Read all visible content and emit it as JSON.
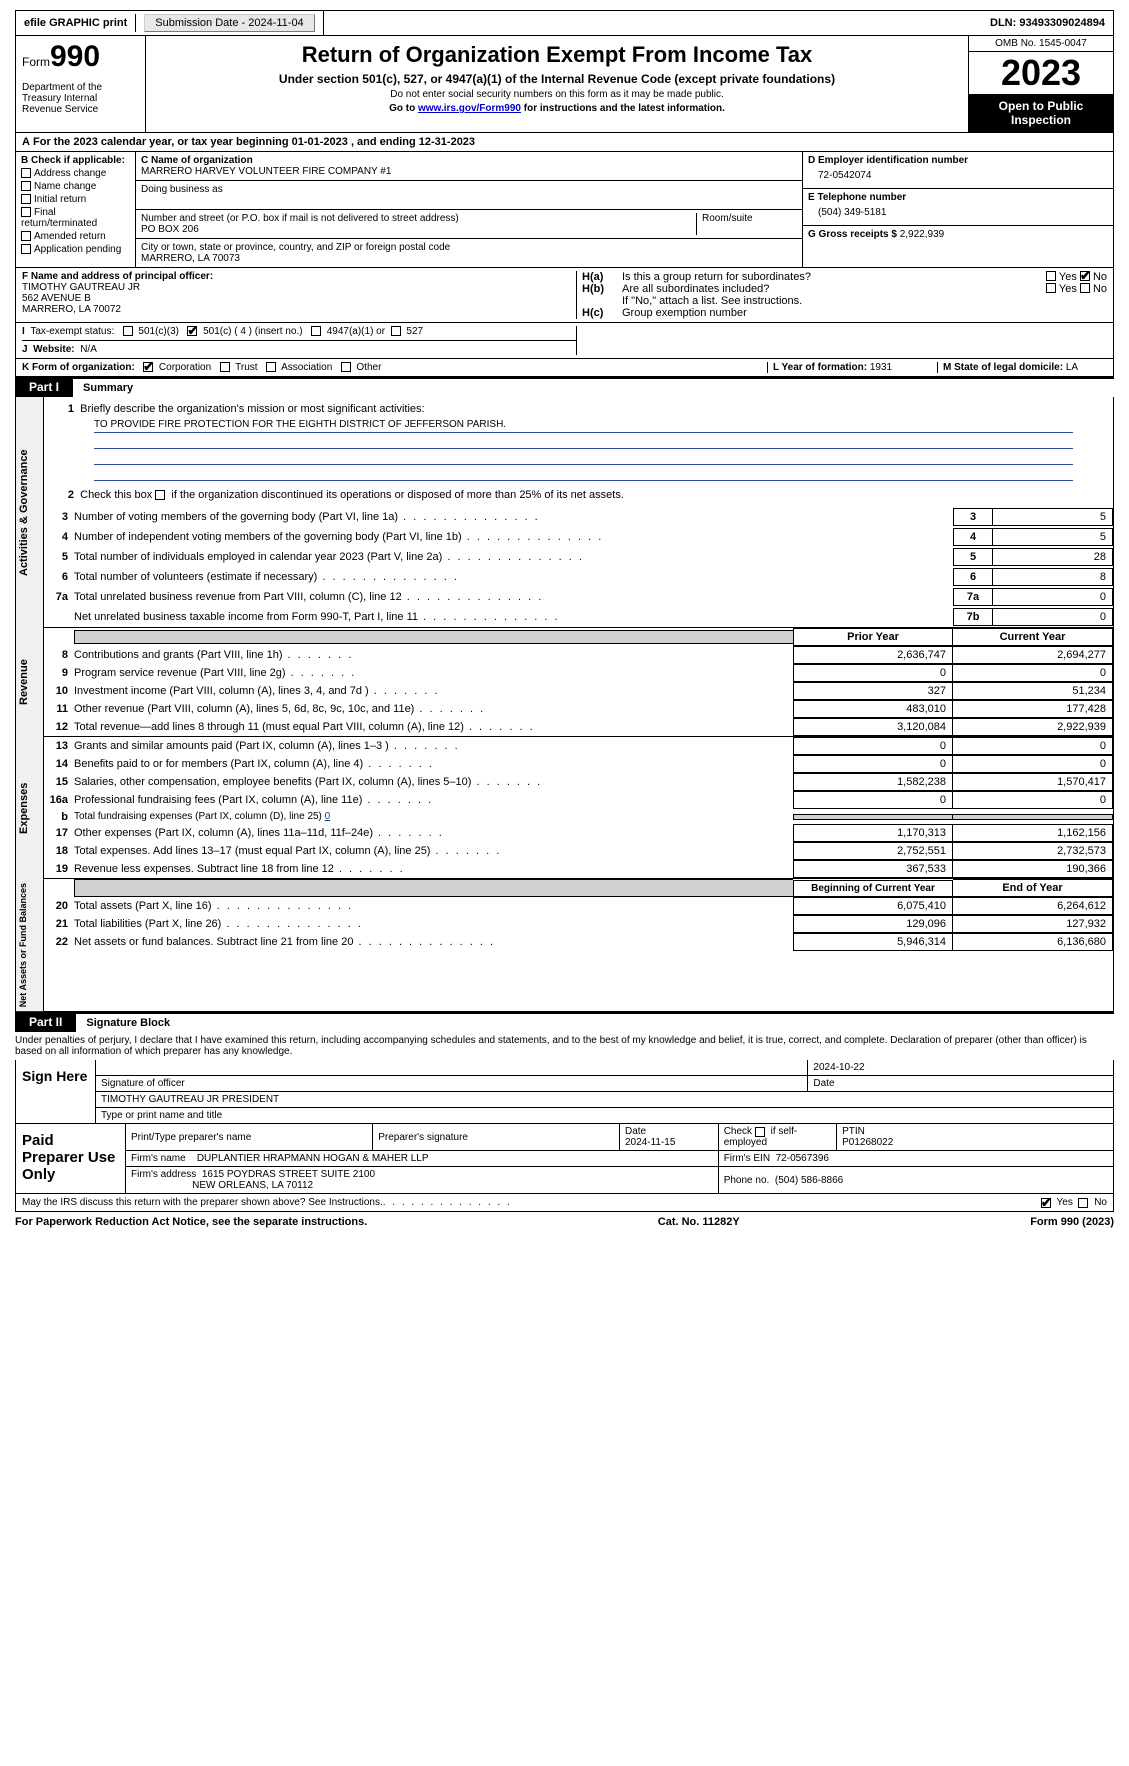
{
  "topbar": {
    "efile": "efile GRAPHIC print",
    "submission": "Submission Date - 2024-11-04",
    "dln": "DLN: 93493309024894"
  },
  "header": {
    "form_prefix": "Form",
    "form_number": "990",
    "dept": "Department of the Treasury Internal Revenue Service",
    "title": "Return of Organization Exempt From Income Tax",
    "subtitle": "Under section 501(c), 527, or 4947(a)(1) of the Internal Revenue Code (except private foundations)",
    "warn": "Do not enter social security numbers on this form as it may be made public.",
    "goto_prefix": "Go to ",
    "goto_link": "www.irs.gov/Form990",
    "goto_suffix": " for instructions and the latest information.",
    "omb": "OMB No. 1545-0047",
    "year": "2023",
    "inspection": "Open to Public Inspection"
  },
  "line_a": "For the 2023 calendar year, or tax year beginning 01-01-2023    , and ending 12-31-2023",
  "box_b": {
    "title": "B Check if applicable:",
    "opts": [
      "Address change",
      "Name change",
      "Initial return",
      "Final return/terminated",
      "Amended return",
      "Application pending"
    ]
  },
  "box_c": {
    "name_lbl": "C Name of organization",
    "name": "MARRERO HARVEY VOLUNTEER FIRE COMPANY #1",
    "dba_lbl": "Doing business as",
    "addr_lbl": "Number and street (or P.O. box if mail is not delivered to street address)",
    "addr": "PO BOX 206",
    "room_lbl": "Room/suite",
    "city_lbl": "City or town, state or province, country, and ZIP or foreign postal code",
    "city": "MARRERO, LA   70073"
  },
  "box_d": {
    "lbl": "D Employer identification number",
    "val": "72-0542074"
  },
  "box_e": {
    "lbl": "E Telephone number",
    "val": "(504) 349-5181"
  },
  "box_g": {
    "lbl": "G Gross receipts $",
    "val": "2,922,939"
  },
  "box_f": {
    "lbl": "F  Name and address of principal officer:",
    "name": "TIMOTHY GAUTREAU JR",
    "addr1": "562 AVENUE B",
    "addr2": "MARRERO, LA   70072"
  },
  "box_h": {
    "ha": "Is this a group return for subordinates?",
    "hb": "Are all subordinates included?",
    "hb_note": "If \"No,\" attach a list. See instructions.",
    "hc": "Group exemption number"
  },
  "box_i": {
    "lbl": "Tax-exempt status:",
    "opts": [
      "501(c)(3)",
      "501(c) ( 4 ) (insert no.)",
      "4947(a)(1) or",
      "527"
    ]
  },
  "box_j": {
    "lbl": "Website:",
    "val": "N/A"
  },
  "box_k": {
    "lbl": "K Form of organization:",
    "opts": [
      "Corporation",
      "Trust",
      "Association",
      "Other"
    ]
  },
  "box_l": {
    "lbl": "L Year of formation:",
    "val": "1931"
  },
  "box_m": {
    "lbl": "M State of legal domicile:",
    "val": "LA"
  },
  "part1": {
    "label": "Part I",
    "title": "Summary"
  },
  "summary": {
    "ag": {
      "tab": "Activities & Governance",
      "l1_lbl": "Briefly describe the organization's mission or most significant activities:",
      "l1_val": "TO PROVIDE FIRE PROTECTION FOR THE EIGHTH DISTRICT OF JEFFERSON PARISH.",
      "l2": "Check this box      if the organization discontinued its operations or disposed of more than 25% of its net assets.",
      "rows": [
        {
          "n": "3",
          "lbl": "Number of voting members of the governing body (Part VI, line 1a)",
          "box": "3",
          "val": "5"
        },
        {
          "n": "4",
          "lbl": "Number of independent voting members of the governing body (Part VI, line 1b)",
          "box": "4",
          "val": "5"
        },
        {
          "n": "5",
          "lbl": "Total number of individuals employed in calendar year 2023 (Part V, line 2a)",
          "box": "5",
          "val": "28"
        },
        {
          "n": "6",
          "lbl": "Total number of volunteers (estimate if necessary)",
          "box": "6",
          "val": "8"
        },
        {
          "n": "7a",
          "lbl": "Total unrelated business revenue from Part VIII, column (C), line 12",
          "box": "7a",
          "val": "0"
        },
        {
          "n": "",
          "lbl": "Net unrelated business taxable income from Form 990-T, Part I, line 11",
          "box": "7b",
          "val": "0"
        }
      ]
    },
    "rev": {
      "tab": "Revenue",
      "hdr_py": "Prior Year",
      "hdr_cy": "Current Year",
      "rows": [
        {
          "n": "8",
          "lbl": "Contributions and grants (Part VIII, line 1h)",
          "py": "2,636,747",
          "cy": "2,694,277"
        },
        {
          "n": "9",
          "lbl": "Program service revenue (Part VIII, line 2g)",
          "py": "0",
          "cy": "0"
        },
        {
          "n": "10",
          "lbl": "Investment income (Part VIII, column (A), lines 3, 4, and 7d )",
          "py": "327",
          "cy": "51,234"
        },
        {
          "n": "11",
          "lbl": "Other revenue (Part VIII, column (A), lines 5, 6d, 8c, 9c, 10c, and 11e)",
          "py": "483,010",
          "cy": "177,428"
        },
        {
          "n": "12",
          "lbl": "Total revenue—add lines 8 through 11 (must equal Part VIII, column (A), line 12)",
          "py": "3,120,084",
          "cy": "2,922,939"
        }
      ]
    },
    "exp": {
      "tab": "Expenses",
      "rows": [
        {
          "n": "13",
          "lbl": "Grants and similar amounts paid (Part IX, column (A), lines 1–3 )",
          "py": "0",
          "cy": "0"
        },
        {
          "n": "14",
          "lbl": "Benefits paid to or for members (Part IX, column (A), line 4)",
          "py": "0",
          "cy": "0"
        },
        {
          "n": "15",
          "lbl": "Salaries, other compensation, employee benefits (Part IX, column (A), lines 5–10)",
          "py": "1,582,238",
          "cy": "1,570,417"
        },
        {
          "n": "16a",
          "lbl": "Professional fundraising fees (Part IX, column (A), line 11e)",
          "py": "0",
          "cy": "0"
        }
      ],
      "l16b_lbl": "Total fundraising expenses (Part IX, column (D), line 25)",
      "l16b_val": "0",
      "rows2": [
        {
          "n": "17",
          "lbl": "Other expenses (Part IX, column (A), lines 11a–11d, 11f–24e)",
          "py": "1,170,313",
          "cy": "1,162,156"
        },
        {
          "n": "18",
          "lbl": "Total expenses. Add lines 13–17 (must equal Part IX, column (A), line 25)",
          "py": "2,752,551",
          "cy": "2,732,573"
        },
        {
          "n": "19",
          "lbl": "Revenue less expenses. Subtract line 18 from line 12",
          "py": "367,533",
          "cy": "190,366"
        }
      ]
    },
    "na": {
      "tab": "Net Assets or Fund Balances",
      "hdr_b": "Beginning of Current Year",
      "hdr_e": "End of Year",
      "rows": [
        {
          "n": "20",
          "lbl": "Total assets (Part X, line 16)",
          "py": "6,075,410",
          "cy": "6,264,612"
        },
        {
          "n": "21",
          "lbl": "Total liabilities (Part X, line 26)",
          "py": "129,096",
          "cy": "127,932"
        },
        {
          "n": "22",
          "lbl": "Net assets or fund balances. Subtract line 21 from line 20",
          "py": "5,946,314",
          "cy": "6,136,680"
        }
      ]
    }
  },
  "part2": {
    "label": "Part II",
    "title": "Signature Block"
  },
  "penalties": "Under penalties of perjury, I declare that I have examined this return, including accompanying schedules and statements, and to the best of my knowledge and belief, it is true, correct, and complete. Declaration of preparer (other than officer) is based on all information of which preparer has any knowledge.",
  "sign": {
    "here": "Sign Here",
    "date": "2024-10-22",
    "sig_lbl": "Signature of officer",
    "date_lbl": "Date",
    "name": "TIMOTHY GAUTREAU JR  PRESIDENT",
    "name_lbl": "Type or print name and title"
  },
  "prep": {
    "here": "Paid Preparer Use Only",
    "h1": "Print/Type preparer's name",
    "h2": "Preparer's signature",
    "h3": "Date",
    "h3v": "2024-11-15",
    "h4": "Check        if self-employed",
    "h5": "PTIN",
    "h5v": "P01268022",
    "firm_lbl": "Firm's name",
    "firm": "DUPLANTIER HRAPMANN HOGAN & MAHER LLP",
    "ein_lbl": "Firm's EIN",
    "ein": "72-0567396",
    "addr_lbl": "Firm's address",
    "addr1": "1615 POYDRAS STREET SUITE 2100",
    "addr2": "NEW ORLEANS, LA   70112",
    "phone_lbl": "Phone no.",
    "phone": "(504) 586-8866"
  },
  "discuss": "May the IRS discuss this return with the preparer shown above? See Instructions.",
  "footer": {
    "pra": "For Paperwork Reduction Act Notice, see the separate instructions.",
    "cat": "Cat. No. 11282Y",
    "form": "Form 990 (2023)"
  },
  "yes": "Yes",
  "no": "No",
  "ha_lbl": "H(a)",
  "hb_lbl": "H(b)",
  "hc_lbl": "H(c)",
  "b_letter": "b",
  "i_letter": "I",
  "j_letter": "J"
}
